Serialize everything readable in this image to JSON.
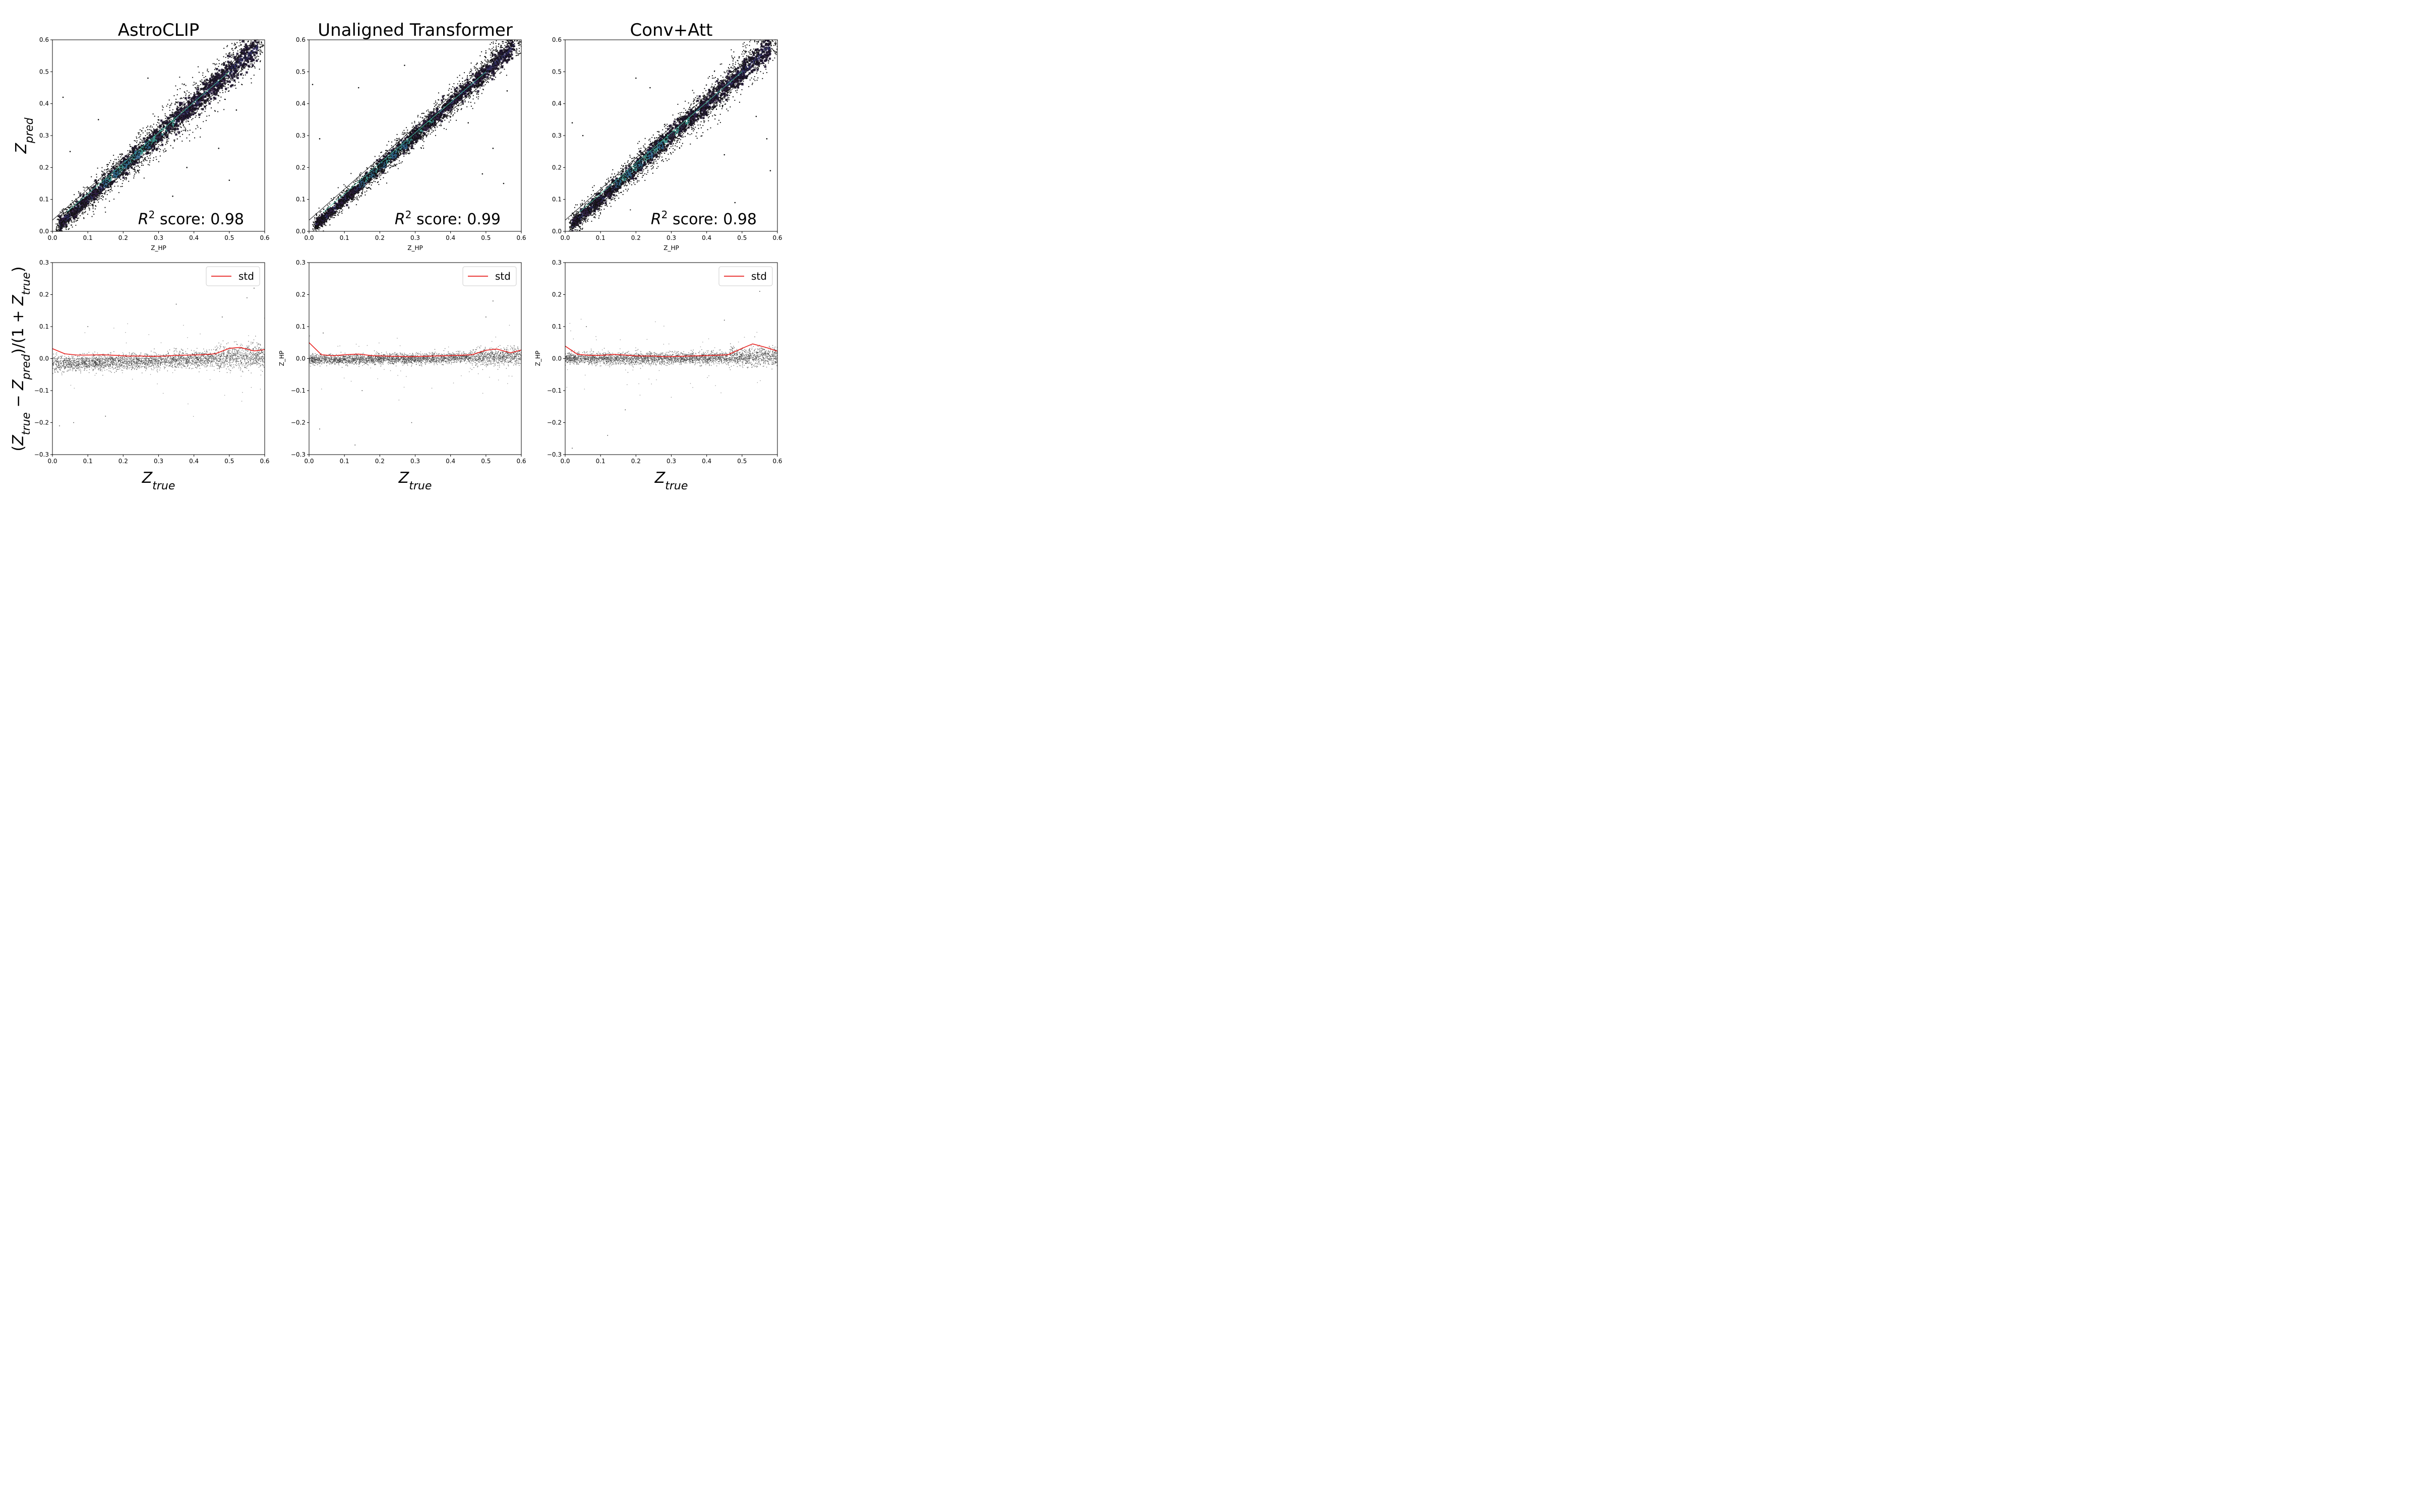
{
  "figure": {
    "ylabel_top": "Z_pred",
    "ylabel_bottom": "(Z_true − Z_pred)/(1 + Z_true)",
    "xlabel_bottom": "Z_true"
  },
  "chart_data": [
    {
      "id": "top-astroclip",
      "type": "scatter",
      "title": "AstroCLIP",
      "xlabel": "Z_HP",
      "ylabel": "Z_pred",
      "xlim": [
        0,
        0.6
      ],
      "ylim": [
        0,
        0.6
      ],
      "xticks": [
        "0.0",
        "0.1",
        "0.2",
        "0.3",
        "0.4",
        "0.5",
        "0.6"
      ],
      "yticks": [
        "0.0",
        "0.1",
        "0.2",
        "0.3",
        "0.4",
        "0.5",
        "0.6"
      ],
      "r2_text": "score: 0.98",
      "r2_value": 0.98,
      "scatter_spread": 0.016,
      "outliers": [
        [
          0.03,
          0.42
        ],
        [
          0.13,
          0.35
        ],
        [
          0.27,
          0.48
        ],
        [
          0.34,
          0.11
        ],
        [
          0.5,
          0.16
        ],
        [
          0.52,
          0.38
        ],
        [
          0.05,
          0.25
        ],
        [
          0.47,
          0.26
        ],
        [
          0.38,
          0.2
        ]
      ]
    },
    {
      "id": "top-unaligned",
      "type": "scatter",
      "title": "Unaligned Transformer",
      "xlabel": "Z_HP",
      "ylabel": "",
      "xlim": [
        0,
        0.6
      ],
      "ylim": [
        0,
        0.6
      ],
      "xticks": [
        "0.0",
        "0.1",
        "0.2",
        "0.3",
        "0.4",
        "0.5",
        "0.6"
      ],
      "yticks": [
        "0.0",
        "0.1",
        "0.2",
        "0.3",
        "0.4",
        "0.5",
        "0.6"
      ],
      "r2_text": "score: 0.99",
      "r2_value": 0.99,
      "scatter_spread": 0.011,
      "outliers": [
        [
          0.01,
          0.46
        ],
        [
          0.14,
          0.45
        ],
        [
          0.27,
          0.52
        ],
        [
          0.52,
          0.26
        ],
        [
          0.55,
          0.15
        ],
        [
          0.49,
          0.18
        ],
        [
          0.03,
          0.29
        ],
        [
          0.45,
          0.34
        ],
        [
          0.56,
          0.44
        ]
      ]
    },
    {
      "id": "top-convatt",
      "type": "scatter",
      "title": "Conv+Att",
      "xlabel": "Z_HP",
      "ylabel": "",
      "xlim": [
        0,
        0.6
      ],
      "ylim": [
        0,
        0.6
      ],
      "xticks": [
        "0.0",
        "0.1",
        "0.2",
        "0.3",
        "0.4",
        "0.5",
        "0.6"
      ],
      "yticks": [
        "0.0",
        "0.1",
        "0.2",
        "0.3",
        "0.4",
        "0.5",
        "0.6"
      ],
      "r2_text": "score: 0.98",
      "r2_value": 0.98,
      "scatter_spread": 0.014,
      "outliers": [
        [
          0.02,
          0.34
        ],
        [
          0.2,
          0.48
        ],
        [
          0.24,
          0.45
        ],
        [
          0.57,
          0.29
        ],
        [
          0.58,
          0.19
        ],
        [
          0.48,
          0.09
        ],
        [
          0.05,
          0.3
        ],
        [
          0.45,
          0.24
        ],
        [
          0.54,
          0.36
        ]
      ]
    },
    {
      "id": "bottom-astroclip",
      "type": "scatter",
      "title": "",
      "xlabel": "Z_true",
      "ylabel": "",
      "xlim": [
        0,
        0.6
      ],
      "ylim": [
        -0.3,
        0.3
      ],
      "xticks": [
        "0.0",
        "0.1",
        "0.2",
        "0.3",
        "0.4",
        "0.5",
        "0.6"
      ],
      "yticks": [
        "−0.3",
        "−0.2",
        "−0.1",
        "0.0",
        "0.1",
        "0.2",
        "0.3"
      ],
      "legend": [
        "std"
      ],
      "legend_position": "top-right",
      "residual_offset": -0.015,
      "residual_spread": 0.012,
      "std_line": {
        "name": "std",
        "color": "#e8201e",
        "x": [
          0.0,
          0.035,
          0.07,
          0.1,
          0.14,
          0.18,
          0.21,
          0.25,
          0.28,
          0.32,
          0.35,
          0.39,
          0.42,
          0.46,
          0.5,
          0.53,
          0.57,
          0.6
        ],
        "y": [
          0.031,
          0.015,
          0.011,
          0.011,
          0.012,
          0.01,
          0.008,
          0.008,
          0.007,
          0.008,
          0.01,
          0.011,
          0.012,
          0.015,
          0.032,
          0.035,
          0.024,
          0.028
        ]
      },
      "outliers": [
        [
          0.02,
          -0.21
        ],
        [
          0.06,
          -0.2
        ],
        [
          0.15,
          -0.18
        ],
        [
          0.35,
          0.17
        ],
        [
          0.55,
          0.19
        ],
        [
          0.57,
          0.22
        ],
        [
          0.48,
          0.13
        ],
        [
          0.1,
          0.1
        ]
      ]
    },
    {
      "id": "bottom-unaligned",
      "type": "scatter",
      "title": "",
      "xlabel": "Z_true",
      "ylabel": "Z_HP",
      "xlim": [
        0,
        0.6
      ],
      "ylim": [
        -0.3,
        0.3
      ],
      "xticks": [
        "0.0",
        "0.1",
        "0.2",
        "0.3",
        "0.4",
        "0.5",
        "0.6"
      ],
      "yticks": [
        "−0.3",
        "−0.2",
        "−0.1",
        "0.0",
        "0.1",
        "0.2",
        "0.3"
      ],
      "legend": [
        "std"
      ],
      "legend_position": "top-right",
      "residual_offset": -0.003,
      "residual_spread": 0.008,
      "std_line": {
        "name": "std",
        "color": "#e8201e",
        "x": [
          0.0,
          0.035,
          0.07,
          0.1,
          0.14,
          0.18,
          0.21,
          0.25,
          0.28,
          0.32,
          0.35,
          0.39,
          0.42,
          0.46,
          0.5,
          0.53,
          0.57,
          0.6
        ],
        "y": [
          0.05,
          0.012,
          0.009,
          0.012,
          0.014,
          0.009,
          0.008,
          0.007,
          0.006,
          0.007,
          0.008,
          0.009,
          0.01,
          0.012,
          0.026,
          0.03,
          0.018,
          0.027
        ]
      },
      "outliers": [
        [
          0.03,
          -0.22
        ],
        [
          0.13,
          -0.27
        ],
        [
          0.29,
          -0.2
        ],
        [
          0.52,
          0.18
        ],
        [
          0.5,
          0.13
        ],
        [
          0.15,
          -0.1
        ],
        [
          0.04,
          0.08
        ]
      ]
    },
    {
      "id": "bottom-convatt",
      "type": "scatter",
      "title": "",
      "xlabel": "Z_true",
      "ylabel": "Z_HP",
      "xlim": [
        0,
        0.6
      ],
      "ylim": [
        -0.3,
        0.3
      ],
      "xticks": [
        "0.0",
        "0.1",
        "0.2",
        "0.3",
        "0.4",
        "0.5",
        "0.6"
      ],
      "yticks": [
        "−0.3",
        "−0.2",
        "−0.1",
        "0.0",
        "0.1",
        "0.2",
        "0.3"
      ],
      "legend": [
        "std"
      ],
      "legend_position": "top-right",
      "residual_offset": 0.0,
      "residual_spread": 0.009,
      "std_line": {
        "name": "std",
        "color": "#e8201e",
        "x": [
          0.0,
          0.035,
          0.07,
          0.1,
          0.14,
          0.18,
          0.21,
          0.25,
          0.28,
          0.32,
          0.35,
          0.39,
          0.42,
          0.46,
          0.5,
          0.53,
          0.57,
          0.6
        ],
        "y": [
          0.039,
          0.013,
          0.01,
          0.01,
          0.013,
          0.01,
          0.008,
          0.008,
          0.006,
          0.007,
          0.008,
          0.009,
          0.01,
          0.012,
          0.032,
          0.046,
          0.034,
          0.023
        ]
      },
      "outliers": [
        [
          0.02,
          -0.28
        ],
        [
          0.12,
          -0.24
        ],
        [
          0.55,
          0.21
        ],
        [
          0.57,
          0.24
        ],
        [
          0.45,
          0.12
        ],
        [
          0.17,
          -0.16
        ],
        [
          0.06,
          0.1
        ]
      ]
    }
  ]
}
